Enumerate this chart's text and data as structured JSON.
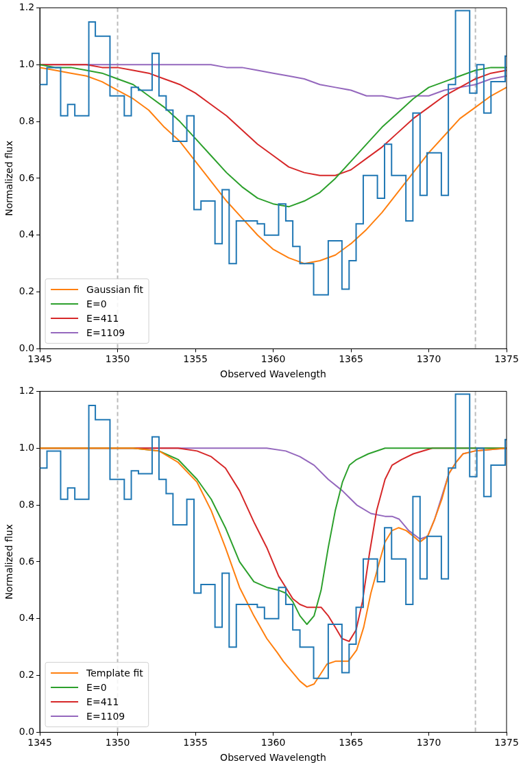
{
  "chart_data": [
    {
      "type": "line",
      "xlabel": "Observed Wavelength",
      "ylabel": "Normalized flux",
      "xlim": [
        1345,
        1375
      ],
      "xticks": [
        1345,
        1350,
        1355,
        1360,
        1365,
        1370,
        1375
      ],
      "ylim": [
        0,
        1.2
      ],
      "yticks": [
        {
          "value": 0,
          "label": "0.0"
        },
        {
          "value": 0.2,
          "label": "0.2"
        },
        {
          "value": 0.4,
          "label": "0.4"
        },
        {
          "value": 0.6,
          "label": "0.6"
        },
        {
          "value": 0.8,
          "label": "0.8"
        },
        {
          "value": 1,
          "label": "1.0"
        },
        {
          "value": 1.2,
          "label": "1.2"
        }
      ],
      "legend": "bottom left",
      "marker": "none",
      "ref_lines": [
        {
          "axis": "x",
          "value": 1350,
          "color": "#bbbbbb",
          "line_style": "dashed"
        },
        {
          "axis": "x",
          "value": 1373,
          "color": "#bbbbbb",
          "line_style": "dashed"
        }
      ],
      "series": [
        {
          "type": "step",
          "color": "#1f77b4",
          "x": [
            1345.0,
            1345.46,
            1346.34,
            1346.79,
            1347.25,
            1348.15,
            1348.57,
            1349.51,
            1349.97,
            1350.43,
            1350.88,
            1351.34,
            1352.22,
            1352.66,
            1353.12,
            1353.56,
            1354.45,
            1354.91,
            1355.36,
            1356.26,
            1356.72,
            1357.17,
            1357.63,
            1358.98,
            1359.44,
            1360.35,
            1360.81,
            1361.26,
            1361.72,
            1362.6,
            1363.54,
            1364.42,
            1364.88,
            1365.33,
            1365.79,
            1366.7,
            1367.16,
            1367.61,
            1368.53,
            1368.98,
            1369.44,
            1369.89,
            1370.81,
            1371.26,
            1371.72,
            1372.63,
            1373.09,
            1373.54,
            1374.0,
            1374.91
          ],
          "values": [
            0.93,
            0.99,
            0.82,
            0.86,
            0.82,
            1.15,
            1.1,
            0.89,
            0.89,
            0.82,
            0.92,
            0.91,
            1.04,
            0.89,
            0.84,
            0.73,
            0.82,
            0.49,
            0.52,
            0.37,
            0.56,
            0.3,
            0.45,
            0.44,
            0.4,
            0.51,
            0.45,
            0.36,
            0.3,
            0.19,
            0.38,
            0.21,
            0.31,
            0.44,
            0.61,
            0.53,
            0.72,
            0.61,
            0.45,
            0.83,
            0.54,
            0.69,
            0.54,
            0.93,
            1.19,
            0.9,
            1.0,
            0.83,
            0.94,
            1.03
          ]
        },
        {
          "name": "Gaussian fit",
          "color": "#ff7f0e",
          "x": [
            1345,
            1346,
            1347,
            1348,
            1349,
            1350,
            1351,
            1352,
            1353,
            1354,
            1355,
            1356,
            1357,
            1358,
            1359,
            1360,
            1361,
            1362,
            1363,
            1364,
            1365,
            1366,
            1367,
            1368,
            1369,
            1370,
            1371,
            1372,
            1373,
            1374,
            1375
          ],
          "values": [
            0.99,
            0.98,
            0.97,
            0.96,
            0.94,
            0.91,
            0.88,
            0.84,
            0.78,
            0.73,
            0.66,
            0.59,
            0.52,
            0.46,
            0.4,
            0.35,
            0.32,
            0.3,
            0.31,
            0.33,
            0.37,
            0.42,
            0.48,
            0.55,
            0.62,
            0.69,
            0.75,
            0.81,
            0.85,
            0.89,
            0.92
          ]
        },
        {
          "name": "E=0",
          "color": "#2ca02c",
          "x": [
            1345,
            1346,
            1347,
            1348,
            1349,
            1350,
            1351,
            1352,
            1353,
            1354,
            1355,
            1356,
            1357,
            1358,
            1359,
            1360,
            1361,
            1362,
            1363,
            1364,
            1365,
            1366,
            1367,
            1368,
            1369,
            1370,
            1371,
            1372,
            1373,
            1374,
            1375
          ],
          "values": [
            1.0,
            0.99,
            0.99,
            0.98,
            0.97,
            0.95,
            0.93,
            0.89,
            0.85,
            0.8,
            0.74,
            0.68,
            0.62,
            0.57,
            0.53,
            0.51,
            0.5,
            0.52,
            0.55,
            0.6,
            0.66,
            0.72,
            0.78,
            0.83,
            0.88,
            0.92,
            0.94,
            0.96,
            0.98,
            0.99,
            0.99
          ]
        },
        {
          "name": "E=411",
          "color": "#d62728",
          "x": [
            1345,
            1346,
            1347,
            1348,
            1349,
            1350,
            1351,
            1352,
            1353,
            1354,
            1355,
            1356,
            1357,
            1358,
            1359,
            1360,
            1361,
            1362,
            1363,
            1364,
            1365,
            1366,
            1367,
            1368,
            1369,
            1370,
            1371,
            1372,
            1373,
            1374,
            1375
          ],
          "values": [
            1.0,
            1.0,
            1.0,
            1.0,
            0.99,
            0.99,
            0.98,
            0.97,
            0.95,
            0.93,
            0.9,
            0.86,
            0.82,
            0.77,
            0.72,
            0.68,
            0.64,
            0.62,
            0.61,
            0.61,
            0.63,
            0.67,
            0.71,
            0.76,
            0.81,
            0.85,
            0.89,
            0.92,
            0.95,
            0.97,
            0.98
          ]
        },
        {
          "name": "E=1109",
          "color": "#9467bd",
          "x": [
            1345,
            1350,
            1352,
            1353,
            1354,
            1355,
            1356,
            1357,
            1358,
            1359,
            1360,
            1361,
            1362,
            1363,
            1364,
            1365,
            1366,
            1367,
            1368,
            1369,
            1370,
            1371,
            1372,
            1373,
            1374,
            1375
          ],
          "values": [
            1.0,
            1.0,
            1.0,
            1.0,
            1.0,
            1.0,
            1.0,
            0.99,
            0.99,
            0.98,
            0.97,
            0.96,
            0.95,
            0.93,
            0.92,
            0.91,
            0.89,
            0.89,
            0.88,
            0.89,
            0.89,
            0.91,
            0.92,
            0.93,
            0.95,
            0.96
          ]
        }
      ]
    },
    {
      "type": "line",
      "xlabel": "Observed Wavelength",
      "ylabel": "Normalized flux",
      "xlim": [
        1345,
        1375
      ],
      "xticks": [
        1345,
        1350,
        1355,
        1360,
        1365,
        1370,
        1375
      ],
      "ylim": [
        0,
        1.2
      ],
      "yticks": [
        {
          "value": 0,
          "label": "0.0"
        },
        {
          "value": 0.2,
          "label": "0.2"
        },
        {
          "value": 0.4,
          "label": "0.4"
        },
        {
          "value": 0.6,
          "label": "0.6"
        },
        {
          "value": 0.8,
          "label": "0.8"
        },
        {
          "value": 1,
          "label": "1.0"
        },
        {
          "value": 1.2,
          "label": "1.2"
        }
      ],
      "legend": "bottom left",
      "marker": "none",
      "ref_lines": [
        {
          "axis": "x",
          "value": 1350,
          "color": "#bbbbbb",
          "line_style": "dashed"
        },
        {
          "axis": "x",
          "value": 1373,
          "color": "#bbbbbb",
          "line_style": "dashed"
        }
      ],
      "series": [
        {
          "type": "step",
          "color": "#1f77b4",
          "x": [
            1345.0,
            1345.46,
            1346.34,
            1346.79,
            1347.25,
            1348.15,
            1348.57,
            1349.51,
            1349.97,
            1350.43,
            1350.88,
            1351.34,
            1352.22,
            1352.66,
            1353.12,
            1353.56,
            1354.45,
            1354.91,
            1355.36,
            1356.26,
            1356.72,
            1357.17,
            1357.63,
            1358.98,
            1359.44,
            1360.35,
            1360.81,
            1361.26,
            1361.72,
            1362.6,
            1363.54,
            1364.42,
            1364.88,
            1365.33,
            1365.79,
            1366.7,
            1367.16,
            1367.61,
            1368.53,
            1368.98,
            1369.44,
            1369.89,
            1370.81,
            1371.26,
            1371.72,
            1372.63,
            1373.09,
            1373.54,
            1374.0,
            1374.91
          ],
          "values": [
            0.93,
            0.99,
            0.82,
            0.86,
            0.82,
            1.15,
            1.1,
            0.89,
            0.89,
            0.82,
            0.92,
            0.91,
            1.04,
            0.89,
            0.84,
            0.73,
            0.82,
            0.49,
            0.52,
            0.37,
            0.56,
            0.3,
            0.45,
            0.44,
            0.4,
            0.51,
            0.45,
            0.36,
            0.3,
            0.19,
            0.38,
            0.21,
            0.31,
            0.44,
            0.61,
            0.53,
            0.72,
            0.61,
            0.45,
            0.83,
            0.54,
            0.69,
            0.54,
            0.93,
            1.19,
            0.9,
            1.0,
            0.83,
            0.94,
            1.03
          ]
        },
        {
          "name": "Template fit",
          "color": "#ff7f0e",
          "x": [
            1345,
            1351,
            1352.67,
            1353.89,
            1355.11,
            1356.02,
            1356.93,
            1357.84,
            1358.76,
            1359.59,
            1360.27,
            1360.65,
            1361.72,
            1362.17,
            1362.63,
            1363.46,
            1364.0,
            1364.45,
            1364.83,
            1365.37,
            1365.82,
            1366.28,
            1366.73,
            1367.19,
            1367.64,
            1368.07,
            1368.55,
            1369.01,
            1369.44,
            1369.93,
            1370.38,
            1370.84,
            1371.29,
            1371.75,
            1372.2,
            1372.96,
            1375
          ],
          "values": [
            1.0,
            1.0,
            0.99,
            0.95,
            0.88,
            0.78,
            0.65,
            0.51,
            0.41,
            0.33,
            0.28,
            0.25,
            0.18,
            0.16,
            0.17,
            0.24,
            0.25,
            0.25,
            0.25,
            0.29,
            0.37,
            0.49,
            0.58,
            0.67,
            0.71,
            0.72,
            0.71,
            0.69,
            0.67,
            0.69,
            0.75,
            0.82,
            0.91,
            0.95,
            0.98,
            0.99,
            1.0
          ]
        },
        {
          "name": "E=0",
          "color": "#2ca02c",
          "x": [
            1345,
            1351,
            1352.67,
            1353.89,
            1355.11,
            1356.02,
            1356.93,
            1357.84,
            1358.76,
            1359.59,
            1360.35,
            1360.81,
            1361.26,
            1361.72,
            1362.17,
            1362.63,
            1363.08,
            1363.54,
            1363.99,
            1364.45,
            1364.9,
            1365.36,
            1366.12,
            1367.19,
            1368.7,
            1375
          ],
          "values": [
            1.0,
            1.0,
            0.99,
            0.96,
            0.89,
            0.82,
            0.72,
            0.6,
            0.53,
            0.51,
            0.5,
            0.49,
            0.46,
            0.41,
            0.38,
            0.41,
            0.5,
            0.65,
            0.78,
            0.88,
            0.94,
            0.96,
            0.98,
            1.0,
            1.0,
            1.0
          ]
        },
        {
          "name": "E=411",
          "color": "#d62728",
          "x": [
            1345,
            1352,
            1353.89,
            1355.11,
            1356.02,
            1356.93,
            1357.84,
            1358.76,
            1359.59,
            1360.35,
            1360.81,
            1361.26,
            1361.72,
            1362.17,
            1363.08,
            1363.54,
            1363.99,
            1364.42,
            1364.88,
            1365.33,
            1365.74,
            1366.19,
            1366.65,
            1367.19,
            1367.64,
            1368.25,
            1369.01,
            1370.23,
            1371.5,
            1375
          ],
          "values": [
            1.0,
            1.0,
            1.0,
            0.99,
            0.97,
            0.93,
            0.85,
            0.74,
            0.65,
            0.55,
            0.51,
            0.47,
            0.45,
            0.44,
            0.44,
            0.41,
            0.37,
            0.33,
            0.32,
            0.36,
            0.46,
            0.63,
            0.78,
            0.89,
            0.94,
            0.96,
            0.98,
            1.0,
            1.0,
            1.0
          ]
        },
        {
          "name": "E=1109",
          "color": "#9467bd",
          "x": [
            1345,
            1357,
            1359.59,
            1360.81,
            1361.72,
            1362.63,
            1363.54,
            1364.45,
            1365.37,
            1366.28,
            1367.19,
            1367.64,
            1368.1,
            1368.71,
            1369.44,
            1369.93,
            1370.38,
            1370.84,
            1371.29,
            1371.75,
            1372.2,
            1372.96,
            1375
          ],
          "values": [
            1.0,
            1.0,
            1.0,
            0.99,
            0.97,
            0.94,
            0.89,
            0.85,
            0.8,
            0.77,
            0.76,
            0.76,
            0.75,
            0.71,
            0.68,
            0.69,
            0.75,
            0.83,
            0.91,
            0.95,
            0.98,
            0.99,
            1.0
          ]
        }
      ]
    }
  ]
}
